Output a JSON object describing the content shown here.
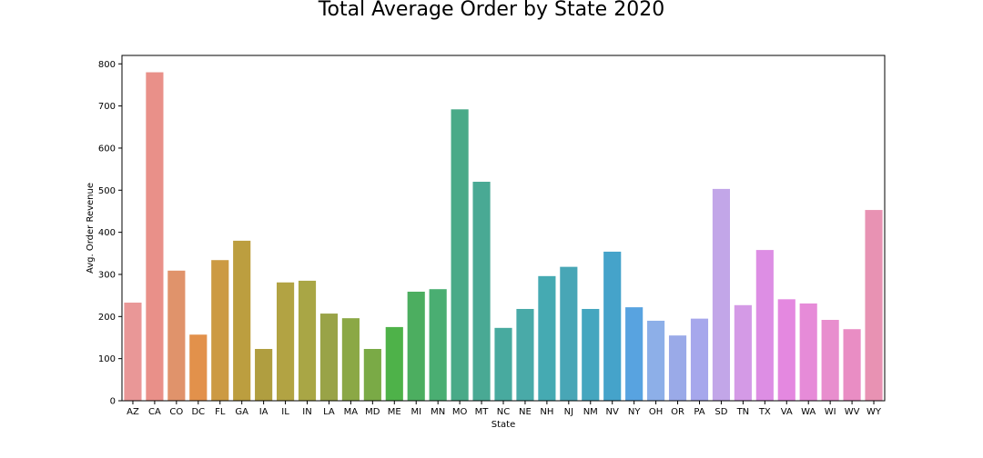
{
  "chart_data": {
    "type": "bar",
    "title": "Total Average Order by State 2020",
    "xlabel": "State",
    "ylabel": "Avg. Order Revenue",
    "ylim": [
      0,
      820
    ],
    "yticks": [
      0,
      100,
      200,
      300,
      400,
      500,
      600,
      700,
      800
    ],
    "grid": false,
    "categories": [
      "AZ",
      "CA",
      "CO",
      "DC",
      "FL",
      "GA",
      "IA",
      "IL",
      "IN",
      "LA",
      "MA",
      "MD",
      "ME",
      "MI",
      "MN",
      "MO",
      "MT",
      "NC",
      "NE",
      "NH",
      "NJ",
      "NM",
      "NV",
      "NY",
      "OH",
      "OR",
      "PA",
      "SD",
      "TN",
      "TX",
      "VA",
      "WA",
      "WI",
      "WV",
      "WY"
    ],
    "values": [
      233,
      780,
      309,
      157,
      334,
      380,
      123,
      281,
      285,
      207,
      196,
      123,
      175,
      259,
      265,
      692,
      520,
      173,
      218,
      296,
      318,
      218,
      354,
      222,
      190,
      155,
      195,
      503,
      227,
      358,
      241,
      231,
      192,
      170,
      453
    ],
    "colors": [
      "#e99797",
      "#e99089",
      "#e0936b",
      "#e2914b",
      "#cc9a43",
      "#bc9e3f",
      "#b09e40",
      "#b2a343",
      "#a9a645",
      "#99a347",
      "#8ba845",
      "#7aaa46",
      "#4eb249",
      "#4cae60",
      "#4aae72",
      "#49aa88",
      "#49a994",
      "#48aa9f",
      "#49aaa8",
      "#45aab2",
      "#48a6b6",
      "#45a6bf",
      "#45a3ca",
      "#58a3e0",
      "#8dafe8",
      "#9aaae8",
      "#a6a7ec",
      "#c2a6e8",
      "#d49ae6",
      "#dd8ee4",
      "#e488e0",
      "#e68bd8",
      "#e88ece",
      "#e98dc4",
      "#e892b3"
    ]
  }
}
